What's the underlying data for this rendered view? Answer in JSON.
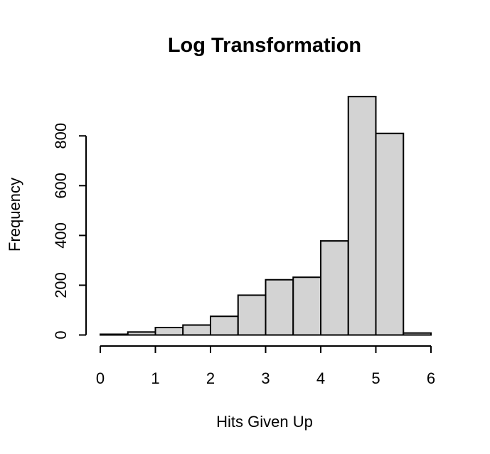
{
  "chart_data": {
    "type": "bar",
    "title": "Log Transformation",
    "xlabel": "Hits Given Up",
    "ylabel": "Frequency",
    "bins": [
      {
        "x0": 0.0,
        "x1": 0.5,
        "count": 3
      },
      {
        "x0": 0.5,
        "x1": 1.0,
        "count": 12
      },
      {
        "x0": 1.0,
        "x1": 1.5,
        "count": 30
      },
      {
        "x0": 1.5,
        "x1": 2.0,
        "count": 40
      },
      {
        "x0": 2.0,
        "x1": 2.5,
        "count": 75
      },
      {
        "x0": 2.5,
        "x1": 3.0,
        "count": 160
      },
      {
        "x0": 3.0,
        "x1": 3.5,
        "count": 222
      },
      {
        "x0": 3.5,
        "x1": 4.0,
        "count": 232
      },
      {
        "x0": 4.0,
        "x1": 4.5,
        "count": 378
      },
      {
        "x0": 4.5,
        "x1": 5.0,
        "count": 958
      },
      {
        "x0": 5.0,
        "x1": 5.5,
        "count": 810
      },
      {
        "x0": 5.5,
        "x1": 6.0,
        "count": 8
      }
    ],
    "xlim": [
      0,
      6
    ],
    "ylim": [
      0,
      960
    ],
    "xticks": [
      "0",
      "1",
      "2",
      "3",
      "4",
      "5",
      "6"
    ],
    "yticks": [
      "0",
      "200",
      "400",
      "600",
      "800"
    ],
    "grid": false,
    "bar_color": "#d3d3d3"
  }
}
